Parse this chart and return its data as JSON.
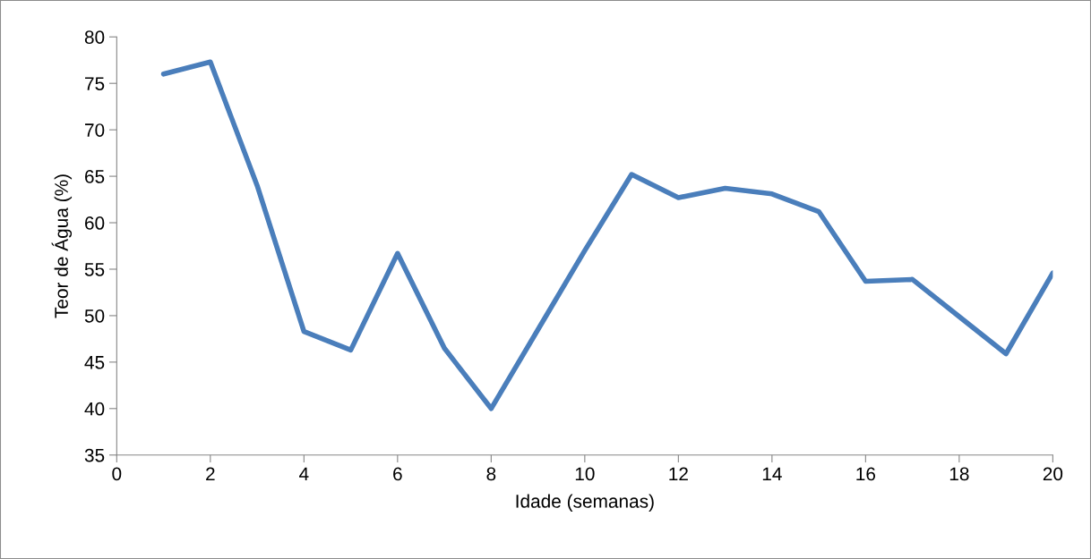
{
  "chart_data": {
    "type": "line",
    "xlabel": "Idade (semanas)",
    "ylabel": "Teor de Água (%)",
    "x": [
      1,
      2,
      3,
      4,
      5,
      6,
      7,
      8,
      9,
      10,
      11,
      12,
      13,
      14,
      15,
      16,
      17,
      18,
      19,
      20
    ],
    "series": [
      {
        "color": "#4a7ebb",
        "values": [
          76.0,
          77.3,
          64.0,
          48.3,
          46.3,
          56.7,
          46.5,
          40.0,
          48.5,
          57.0,
          65.2,
          62.7,
          63.7,
          63.1,
          61.2,
          53.7,
          53.9,
          49.9,
          45.9,
          54.6
        ]
      }
    ],
    "xlim": [
      0,
      20
    ],
    "xticks": [
      0,
      2,
      4,
      6,
      8,
      10,
      12,
      14,
      16,
      18,
      20
    ],
    "ylim": [
      35,
      80
    ],
    "yticks": [
      35,
      40,
      45,
      50,
      55,
      60,
      65,
      70,
      75,
      80
    ],
    "grid": false,
    "legend": false,
    "marker": "none",
    "line_style": "solid"
  }
}
